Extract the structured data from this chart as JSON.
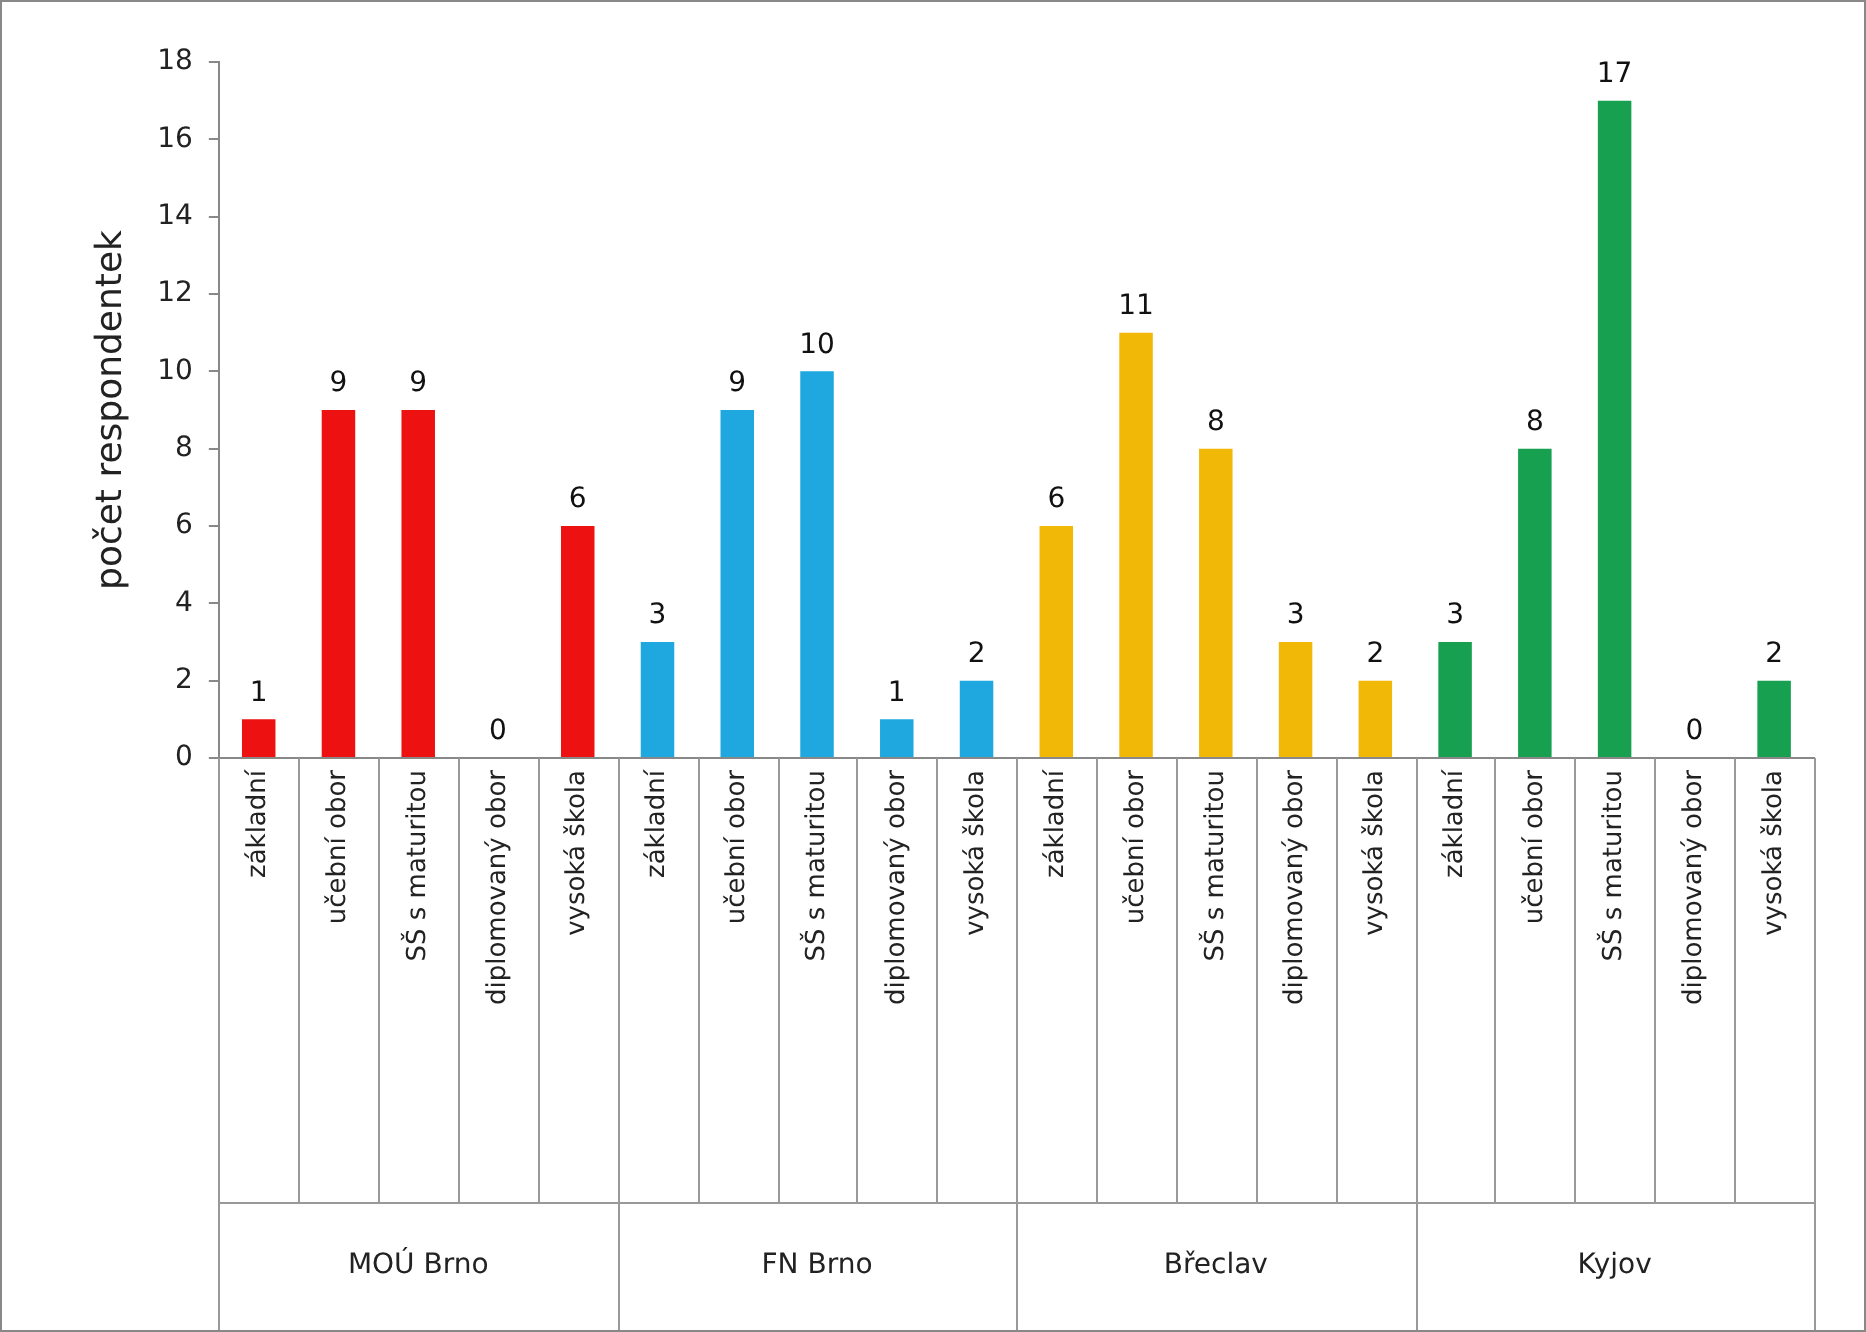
{
  "chart_data": {
    "type": "bar",
    "ylabel": "počet respondentek",
    "categories": [
      "základní",
      "učební obor",
      "SŠ s maturitou",
      "diplomovaný obor",
      "vysoká škola",
      "základní",
      "učební obor",
      "SŠ s maturitou",
      "diplomovaný obor",
      "vysoká škola",
      "základní",
      "učební obor",
      "SŠ s maturitou",
      "diplomovaný obor",
      "vysoká škola",
      "základní",
      "učební obor",
      "SŠ s maturitou",
      "diplomovaný obor",
      "vysoká škola"
    ],
    "series": [
      {
        "color": "#ee1111",
        "values": [
          1,
          9,
          9,
          0,
          6,
          null,
          null,
          null,
          null,
          null,
          null,
          null,
          null,
          null,
          null,
          null,
          null,
          null,
          null,
          null
        ]
      },
      {
        "color": "#1ea8df",
        "values": [
          null,
          null,
          null,
          null,
          null,
          3,
          9,
          10,
          1,
          2,
          null,
          null,
          null,
          null,
          null,
          null,
          null,
          null,
          null,
          null
        ]
      },
      {
        "color": "#f2b807",
        "values": [
          null,
          null,
          null,
          null,
          null,
          null,
          null,
          null,
          null,
          null,
          6,
          11,
          8,
          3,
          2,
          null,
          null,
          null,
          null,
          null
        ]
      },
      {
        "color": "#17a050",
        "values": [
          null,
          null,
          null,
          null,
          null,
          null,
          null,
          null,
          null,
          null,
          null,
          null,
          null,
          null,
          null,
          3,
          8,
          17,
          0,
          2
        ]
      }
    ],
    "ylim": [
      0,
      18
    ],
    "yticks": [
      0,
      2,
      4,
      6,
      8,
      10,
      12,
      14,
      16,
      18
    ],
    "grid": false,
    "legend": false,
    "data_labels": true,
    "annotations": [
      "MOÚ Brno",
      "FN Brno",
      "Břeclav",
      "Kyjov"
    ]
  }
}
